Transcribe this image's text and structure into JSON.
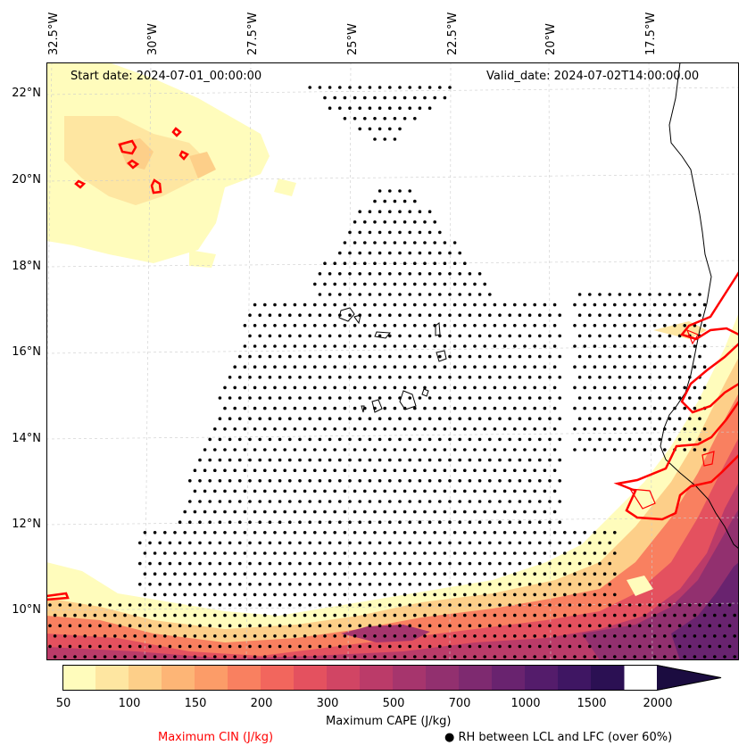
{
  "map": {
    "start_date": "Start date: 2024-07-01_00:00:00",
    "valid_date": "Valid_date: 2024-07-02T14:00:00.00",
    "longitude_labels": [
      "32.5°W",
      "30°W",
      "27.5°W",
      "25°W",
      "22.5°W",
      "20°W",
      "17.5°W"
    ],
    "latitude_labels": [
      "22°N",
      "20°N",
      "18°N",
      "16°N",
      "14°N",
      "12°N",
      "10°N"
    ],
    "colors": {
      "coastline": "#000000",
      "cin_contour": "#ff0000",
      "dots": "#000000",
      "grid": "#cccccc"
    }
  },
  "colorbar": {
    "title": "Maximum CAPE (J/kg)",
    "tick_labels": [
      "50",
      "100",
      "150",
      "200",
      "300",
      "500",
      "700",
      "1000",
      "1500",
      "2000"
    ],
    "colors": [
      "#fffcbc",
      "#fee6a1",
      "#fdcf89",
      "#fdb576",
      "#fc9c68",
      "#f98060",
      "#f2665d",
      "#e4515f",
      "#d14564",
      "#bb3b69",
      "#a6356d",
      "#92306f",
      "#7e2a70",
      "#69236f",
      "#541c6b",
      "#3f1663",
      "#2b1053",
      "#1b0c40"
    ]
  },
  "legend": {
    "cin_label": "Maximum CIN (J/kg)",
    "cin_color": "#ff0000",
    "rh_symbol": "●",
    "rh_label": "RH between LCL and LFC (over 60%)"
  }
}
